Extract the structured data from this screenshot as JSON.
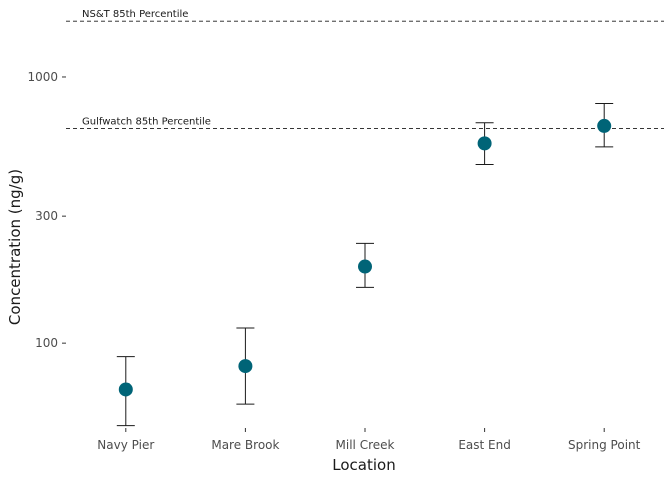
{
  "chart_data": {
    "type": "scatter",
    "xlabel": "Location",
    "ylabel": "Concentration (ng/g)",
    "y_scale": "log",
    "ylim": [
      48,
      1880
    ],
    "y_ticks": [
      100,
      300,
      1000
    ],
    "y_tick_labels": [
      "100",
      "300",
      "1000"
    ],
    "grid": false,
    "categories": [
      "Navy Pier",
      "Mare Brook",
      "Mill Creek",
      "East End",
      "Spring Point"
    ],
    "series": [
      {
        "values": [
          67,
          82,
          194,
          563,
          655
        ],
        "lower": [
          49,
          59,
          162,
          469,
          546
        ],
        "upper": [
          89,
          114,
          237,
          673,
          795
        ]
      }
    ],
    "reference_lines": [
      {
        "label": "NS&T 85th Percentile",
        "value": 1620
      },
      {
        "label": "Gulfwatch 85th Percentile",
        "value": 640
      }
    ],
    "point_color": "#006477"
  }
}
